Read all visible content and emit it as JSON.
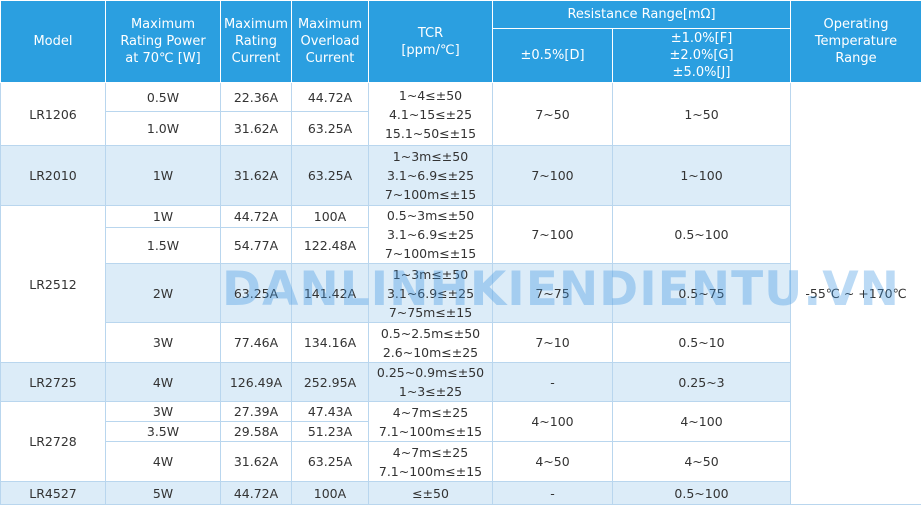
{
  "header": {
    "model": "Model",
    "power": "Maximum\nRating Power\nat 70℃ [W]",
    "current": "Maximum\nRating\nCurrent",
    "overload": "Maximum\nOverload\nCurrent",
    "tcr": "TCR\n[ppm/℃]",
    "resistance": "Resistance Range[mΩ]",
    "res_d": "±0.5%[D]",
    "res_fgj": "±1.0%[F]\n±2.0%[G]\n±5.0%[J]",
    "temp": "Operating\nTemperature\nRange"
  },
  "temperature": "-55℃ ~ +170℃",
  "models": [
    {
      "model": "LR1206",
      "ratings": [
        [
          "0.5W",
          "22.36A",
          "44.72A"
        ],
        [
          "1.0W",
          "31.62A",
          "63.25A"
        ]
      ],
      "groups": [
        [
          "1~4≤±50\n4.1~15≤±25\n15.1~50≤±15",
          "7~50",
          "1~50"
        ]
      ]
    },
    {
      "model": "LR2010",
      "ratings": [
        [
          "1W",
          "31.62A",
          "63.25A"
        ]
      ],
      "groups": [
        [
          "1~3m≤±50\n3.1~6.9≤±25\n7~100m≤±15",
          "7~100",
          "1~100"
        ]
      ]
    },
    {
      "model": "LR2512",
      "ratings": [
        [
          "1W",
          "44.72A",
          "100A"
        ],
        [
          "1.5W",
          "54.77A",
          "122.48A"
        ],
        [
          "2W",
          "63.25A",
          "141.42A"
        ],
        [
          "3W",
          "77.46A",
          "134.16A"
        ]
      ],
      "groups": [
        [
          "0.5~3m≤±50\n3.1~6.9≤±25\n7~100m≤±15",
          "7~100",
          "0.5~100"
        ],
        [
          "1~3m≤±50\n3.1~6.9≤±25\n7~75m≤±15",
          "7~75",
          "0.5~75"
        ],
        [
          "0.5~2.5m≤±50\n2.6~10m≤±25",
          "7~10",
          "0.5~10"
        ]
      ]
    },
    {
      "model": "LR2725",
      "ratings": [
        [
          "4W",
          "126.49A",
          "252.95A"
        ]
      ],
      "groups": [
        [
          "0.25~0.9m≤±50\n1~3≤±25",
          "-",
          "0.25~3"
        ]
      ]
    },
    {
      "model": "LR2728",
      "ratings": [
        [
          "3W",
          "27.39A",
          "47.43A"
        ],
        [
          "3.5W",
          "29.58A",
          "51.23A"
        ],
        [
          "4W",
          "31.62A",
          "63.25A"
        ]
      ],
      "groups": [
        [
          "4~7m≤±25\n7.1~100m≤±15",
          "4~100",
          "4~100"
        ],
        [
          "4~7m≤±25\n7.1~100m≤±15",
          "4~50",
          "4~50"
        ]
      ]
    },
    {
      "model": "LR4527",
      "ratings": [
        [
          "5W",
          "44.72A",
          "100A"
        ]
      ],
      "groups": [
        [
          "≤±50",
          "-",
          "0.5~100"
        ]
      ]
    }
  ],
  "watermark": "DANLINHKIENDIENTU.VN"
}
